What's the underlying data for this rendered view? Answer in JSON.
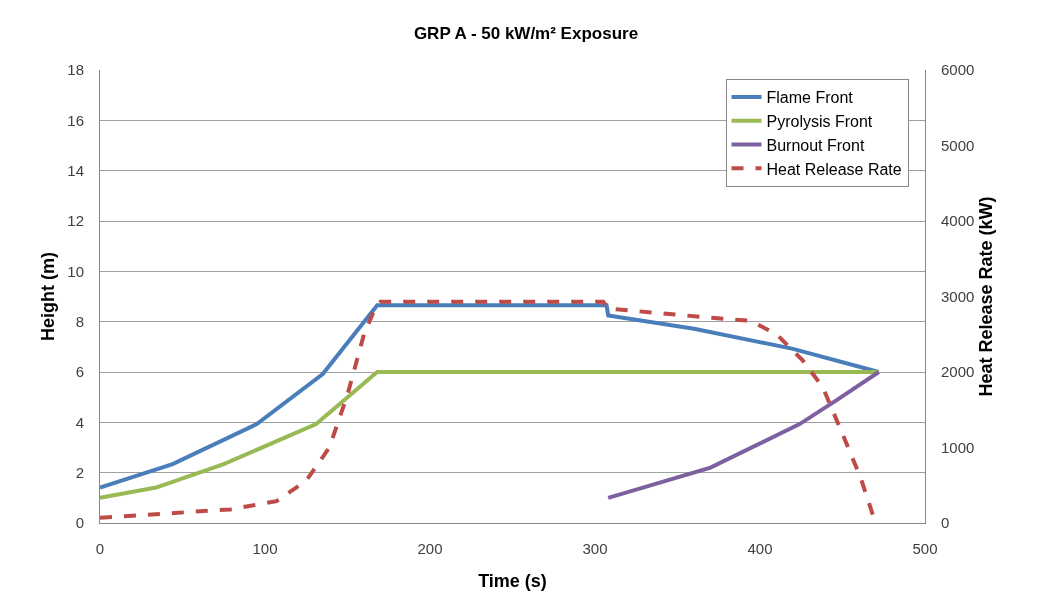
{
  "chart_data": {
    "type": "line",
    "title": "GRP A - 50 kW/m² Exposure",
    "xlabel": "Time (s)",
    "ylabel": "Height (m)",
    "y2label": "Heat Release Rate (kW)",
    "xlim": [
      0,
      500
    ],
    "xticks": [
      0,
      100,
      200,
      300,
      400,
      500
    ],
    "ylim": [
      0,
      18
    ],
    "yticks": [
      0,
      2,
      4,
      6,
      8,
      10,
      12,
      14,
      16,
      18
    ],
    "y2lim": [
      0,
      6000
    ],
    "y2ticks": [
      0,
      1000,
      2000,
      3000,
      4000,
      5000,
      6000
    ],
    "grid": "y",
    "legend": "top right",
    "marker": "none",
    "series": [
      {
        "name": "Flame Front",
        "color": "#4a7ebb",
        "line_style": "solid",
        "x": [
          0,
          44,
          95,
          135,
          168,
          307,
          308,
          360,
          420,
          472
        ],
        "values": [
          1.41,
          2.34,
          3.93,
          5.92,
          8.65,
          8.65,
          8.25,
          7.72,
          6.92,
          6.0
        ]
      },
      {
        "name": "Pyrolysis Front",
        "color": "#98b954",
        "line_style": "solid",
        "x": [
          0,
          34,
          75,
          131,
          168,
          472
        ],
        "values": [
          1.0,
          1.41,
          2.34,
          3.93,
          6.0,
          6.0
        ]
      },
      {
        "name": "Burnout Front",
        "color": "#7d60a0",
        "line_style": "solid",
        "x": [
          308,
          370,
          424,
          446,
          472
        ],
        "values": [
          1.0,
          2.2,
          3.93,
          4.86,
          6.0
        ]
      },
      {
        "name": "Heat Release Rate",
        "color": "#be4b48",
        "line_style": "dashed",
        "axis": "y2",
        "x": [
          0,
          79,
          107,
          125,
          139,
          150,
          160,
          167,
          170,
          305,
          308,
          380,
          394,
          410,
          426,
          438,
          450,
          461,
          470
        ],
        "values": [
          70,
          180,
          290,
          560,
          1000,
          1700,
          2500,
          2860,
          2930,
          2930,
          2840,
          2700,
          2680,
          2500,
          2150,
          1800,
          1180,
          600,
          0
        ]
      }
    ]
  }
}
